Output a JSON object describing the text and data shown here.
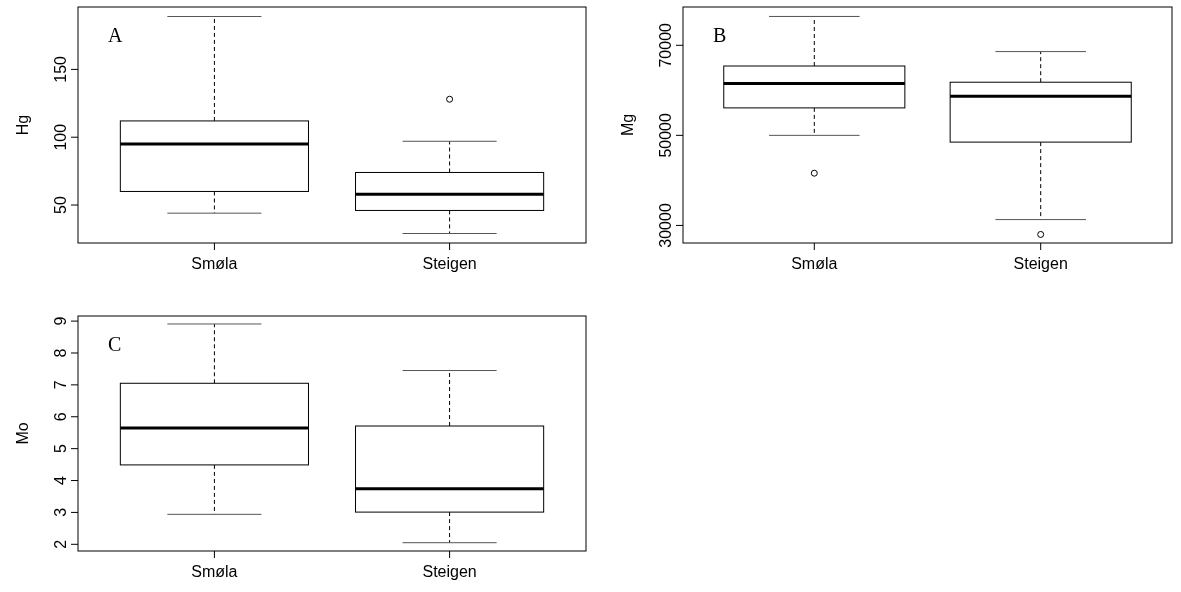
{
  "chart_data": [
    {
      "type": "box",
      "ylabel": "Hg",
      "categories": [
        "Smøla",
        "Steigen"
      ],
      "ylim": [
        22,
        196
      ],
      "yticks": [
        50,
        100,
        150
      ],
      "annotations": [
        "A"
      ],
      "boxes": [
        {
          "low": 44,
          "q1": 60,
          "median": 95,
          "q3": 112,
          "high": 189
        },
        {
          "low": 29,
          "q1": 46,
          "median": 58,
          "q3": 74,
          "high": 97,
          "outliers": [
            128
          ]
        }
      ]
    },
    {
      "type": "box",
      "ylabel": "Mg",
      "categories": [
        "Smøla",
        "Steigen"
      ],
      "ylim": [
        26100,
        78500
      ],
      "yticks": [
        30000,
        50000,
        70000
      ],
      "annotations": [
        "B"
      ],
      "boxes": [
        {
          "low": 50000,
          "q1": 56100,
          "median": 61500,
          "q3": 65400,
          "high": 76400,
          "outliers": [
            41600
          ]
        },
        {
          "low": 31300,
          "q1": 48500,
          "median": 58700,
          "q3": 61800,
          "high": 68600,
          "outliers": [
            28000
          ]
        }
      ]
    },
    {
      "type": "box",
      "ylabel": "Mo",
      "categories": [
        "Smøla",
        "Steigen"
      ],
      "ylim": [
        1.79,
        9.16
      ],
      "yticks": [
        2,
        3,
        4,
        5,
        6,
        7,
        8,
        9
      ],
      "annotations": [
        "C"
      ],
      "boxes": [
        {
          "low": 2.94,
          "q1": 4.49,
          "median": 5.65,
          "q3": 7.05,
          "high": 8.91
        },
        {
          "low": 2.05,
          "q1": 3.01,
          "median": 3.74,
          "q3": 5.71,
          "high": 7.45
        }
      ]
    }
  ]
}
